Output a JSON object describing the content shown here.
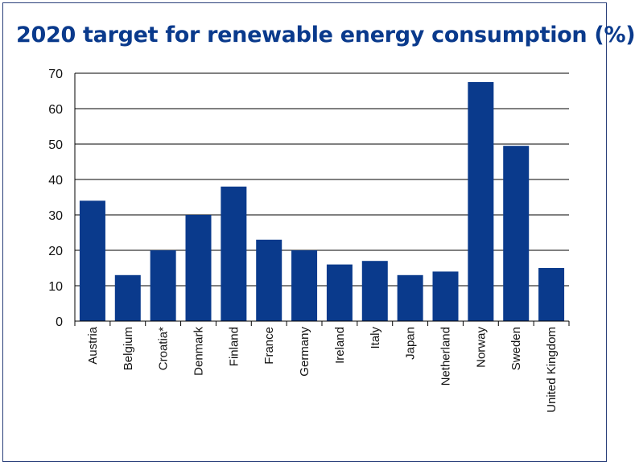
{
  "chart_data": {
    "type": "bar",
    "title": "2020 target for renewable energy consumption (%)",
    "xlabel": "",
    "ylabel": "",
    "categories": [
      "Austria",
      "Belgium",
      "Croatia*",
      "Denmark",
      "Finland",
      "France",
      "Germany",
      "Ireland",
      "Italy",
      "Japan",
      "Netherland",
      "Norway",
      "Sweden",
      "United Kingdom"
    ],
    "values": [
      34,
      13,
      20,
      30,
      38,
      23,
      20,
      16,
      17,
      13,
      14,
      67.5,
      49.5,
      15
    ],
    "ylim": [
      0,
      70
    ],
    "yticks": [
      0,
      10,
      20,
      30,
      40,
      50,
      60,
      70
    ],
    "grid": true,
    "legend": "none",
    "bar_color": "#0a3a8c"
  }
}
